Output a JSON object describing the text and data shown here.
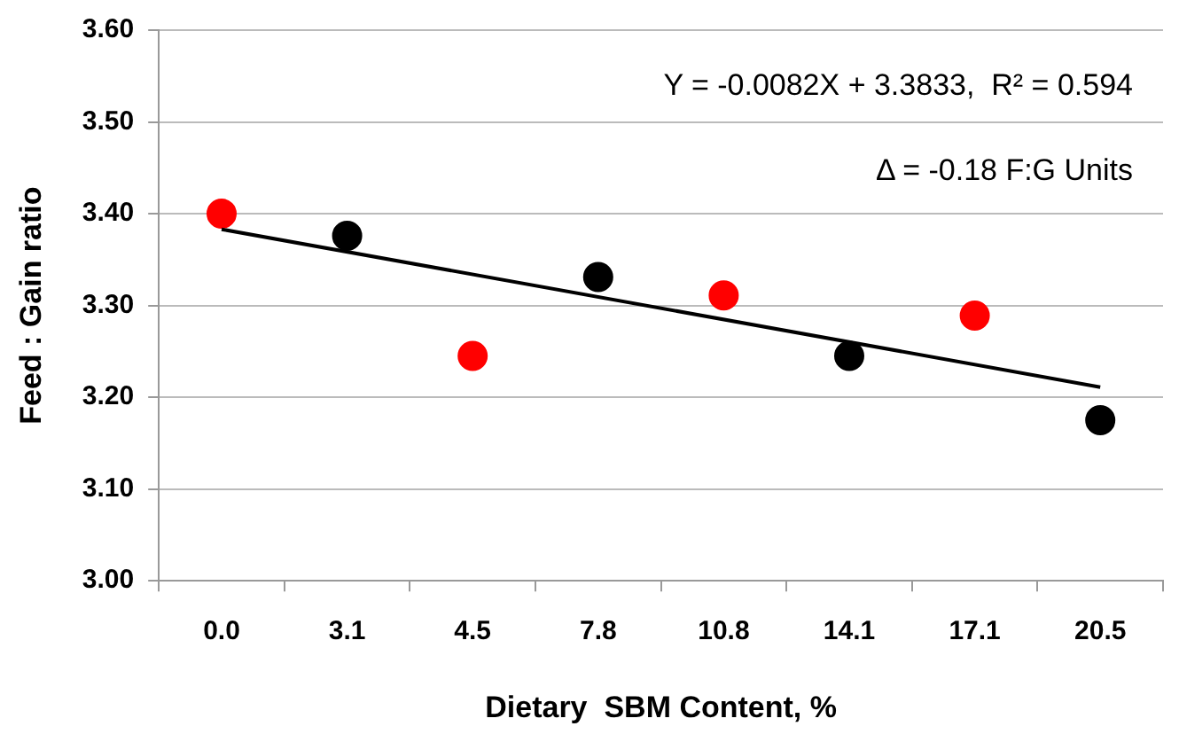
{
  "chart_data": {
    "type": "scatter",
    "xlabel": "Dietary  SBM Content, %",
    "ylabel": "Feed : Gain ratio",
    "categories": [
      "0.0",
      "3.1",
      "4.5",
      "7.8",
      "10.8",
      "14.1",
      "17.1",
      "20.5"
    ],
    "series": [
      {
        "marker": "circle",
        "colors": [
          "#ff0000",
          "#000000",
          "#ff0000",
          "#000000",
          "#ff0000",
          "#000000",
          "#ff0000",
          "#000000"
        ],
        "values": [
          3.4,
          3.376,
          3.245,
          3.331,
          3.311,
          3.245,
          3.289,
          3.175
        ]
      },
      {
        "type": "line",
        "marker": "none",
        "color": "#000000",
        "values": [
          3.383,
          null,
          null,
          null,
          null,
          null,
          null,
          3.211
        ]
      }
    ],
    "ylim": [
      3.0,
      3.6
    ],
    "yticks": [
      {
        "value": 3.0,
        "label": "3.00"
      },
      {
        "value": 3.1,
        "label": "3.10"
      },
      {
        "value": 3.2,
        "label": "3.20"
      },
      {
        "value": 3.3,
        "label": "3.30"
      },
      {
        "value": 3.4,
        "label": "3.40"
      },
      {
        "value": 3.5,
        "label": "3.50"
      },
      {
        "value": 3.6,
        "label": "3.60"
      }
    ],
    "grid": "y",
    "legend": false,
    "annotations": [
      "Y = -0.0082X + 3.3833,  R² = 0.594",
      "Δ = -0.18 F:G Units"
    ]
  }
}
